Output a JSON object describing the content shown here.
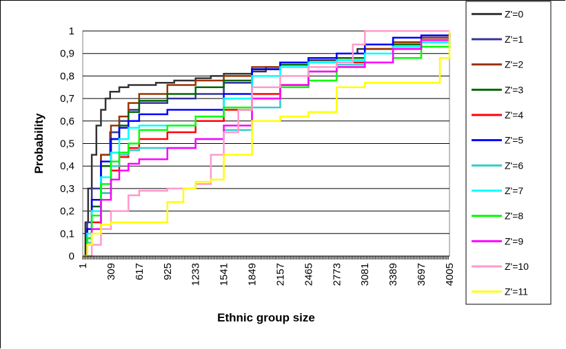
{
  "chart_data": {
    "type": "line",
    "title": "",
    "xlabel": "Ethnic group size",
    "ylabel": "Probability",
    "xlim": [
      1,
      4005
    ],
    "ylim": [
      0,
      1
    ],
    "x_ticks": [
      "1",
      "309",
      "617",
      "925",
      "1233",
      "1541",
      "1849",
      "2157",
      "2465",
      "2773",
      "3081",
      "3389",
      "3697",
      "4005"
    ],
    "y_ticks": [
      "0",
      "0,1",
      "0,2",
      "0,3",
      "0,4",
      "0,5",
      "0,6",
      "0,7",
      "0,8",
      "0,9",
      "1"
    ],
    "grid": "horizontal",
    "legend_position": "right",
    "series": [
      {
        "name": "Z'=0",
        "color": "#333333",
        "x": [
          1,
          30,
          60,
          100,
          150,
          200,
          250,
          300,
          400,
          500,
          617,
          800,
          1000,
          1233,
          1400,
          1541,
          1849,
          2000,
          2157,
          2465,
          2773,
          3000,
          3389,
          3697,
          4005
        ],
        "y": [
          0,
          0.15,
          0.3,
          0.45,
          0.58,
          0.65,
          0.7,
          0.73,
          0.75,
          0.76,
          0.76,
          0.77,
          0.78,
          0.79,
          0.8,
          0.81,
          0.82,
          0.84,
          0.86,
          0.87,
          0.9,
          0.92,
          0.95,
          0.97,
          0.98
        ]
      },
      {
        "name": "Z'=1",
        "color": "#333399",
        "x": [
          1,
          50,
          100,
          200,
          300,
          400,
          500,
          617,
          925,
          1233,
          1541,
          1849,
          2157,
          2465,
          2773,
          3081,
          3389,
          3697,
          4005
        ],
        "y": [
          0,
          0.15,
          0.3,
          0.45,
          0.55,
          0.6,
          0.65,
          0.68,
          0.7,
          0.72,
          0.77,
          0.83,
          0.85,
          0.86,
          0.88,
          0.92,
          0.97,
          0.98,
          0.99
        ]
      },
      {
        "name": "Z'=2",
        "color": "#993300",
        "x": [
          1,
          50,
          100,
          200,
          309,
          400,
          500,
          617,
          925,
          1233,
          1541,
          1849,
          2157,
          2465,
          2773,
          3081,
          3389,
          3697,
          4005
        ],
        "y": [
          0,
          0.12,
          0.25,
          0.45,
          0.58,
          0.62,
          0.68,
          0.72,
          0.76,
          0.78,
          0.8,
          0.84,
          0.86,
          0.86,
          0.9,
          0.92,
          0.95,
          0.97,
          0.98
        ]
      },
      {
        "name": "Z'=3",
        "color": "#006600",
        "x": [
          1,
          50,
          100,
          200,
          309,
          400,
          500,
          617,
          925,
          1233,
          1541,
          1849,
          2157,
          2465,
          2773,
          3081,
          3389,
          3697,
          4005
        ],
        "y": [
          0,
          0.1,
          0.22,
          0.4,
          0.52,
          0.58,
          0.64,
          0.69,
          0.72,
          0.75,
          0.78,
          0.83,
          0.85,
          0.86,
          0.88,
          0.9,
          0.94,
          0.96,
          0.97
        ]
      },
      {
        "name": "Z'=4",
        "color": "#ff0000",
        "x": [
          1,
          50,
          100,
          200,
          309,
          400,
          500,
          617,
          925,
          1233,
          1541,
          1849,
          2157,
          2465,
          2773,
          3081,
          3389,
          3697,
          4005
        ],
        "y": [
          0,
          0.08,
          0.15,
          0.28,
          0.38,
          0.44,
          0.48,
          0.52,
          0.55,
          0.6,
          0.65,
          0.72,
          0.76,
          0.82,
          0.86,
          0.9,
          0.92,
          0.96,
          0.98
        ]
      },
      {
        "name": "Z'=5",
        "color": "#0000ff",
        "x": [
          1,
          50,
          100,
          200,
          309,
          400,
          500,
          617,
          925,
          1233,
          1541,
          1849,
          2157,
          2465,
          2773,
          3081,
          3389,
          3697,
          4005
        ],
        "y": [
          0,
          0.12,
          0.25,
          0.42,
          0.52,
          0.57,
          0.6,
          0.63,
          0.65,
          0.65,
          0.72,
          0.83,
          0.86,
          0.88,
          0.9,
          0.94,
          0.97,
          0.98,
          0.99
        ]
      },
      {
        "name": "Z'=6",
        "color": "#33cccc",
        "x": [
          1,
          50,
          100,
          200,
          309,
          400,
          500,
          617,
          925,
          1233,
          1541,
          1849,
          2157,
          2465,
          2773,
          3081,
          3389,
          3697,
          4005
        ],
        "y": [
          0,
          0.06,
          0.12,
          0.28,
          0.4,
          0.45,
          0.47,
          0.48,
          0.48,
          0.52,
          0.56,
          0.66,
          0.75,
          0.82,
          0.85,
          0.9,
          0.93,
          0.95,
          0.96
        ]
      },
      {
        "name": "Z'=7",
        "color": "#00ffff",
        "x": [
          1,
          50,
          100,
          200,
          309,
          400,
          500,
          617,
          925,
          1233,
          1541,
          1849,
          2157,
          2465,
          2773,
          3081,
          3389,
          3697,
          4005
        ],
        "y": [
          0,
          0.1,
          0.2,
          0.35,
          0.46,
          0.52,
          0.57,
          0.58,
          0.58,
          0.62,
          0.7,
          0.8,
          0.84,
          0.86,
          0.87,
          0.9,
          0.93,
          0.95,
          0.96
        ]
      },
      {
        "name": "Z'=8",
        "color": "#00ff00",
        "x": [
          1,
          50,
          100,
          200,
          309,
          400,
          500,
          617,
          925,
          1233,
          1541,
          1849,
          2157,
          2465,
          2773,
          3081,
          3389,
          3697,
          4005
        ],
        "y": [
          0,
          0.08,
          0.18,
          0.32,
          0.42,
          0.46,
          0.5,
          0.56,
          0.58,
          0.62,
          0.66,
          0.7,
          0.75,
          0.78,
          0.84,
          0.86,
          0.88,
          0.93,
          0.97
        ]
      },
      {
        "name": "Z'=9",
        "color": "#ff00ff",
        "x": [
          1,
          50,
          100,
          200,
          309,
          400,
          500,
          617,
          925,
          1233,
          1541,
          1849,
          2157,
          2465,
          2773,
          3081,
          3389,
          3697,
          4005
        ],
        "y": [
          0,
          0.05,
          0.12,
          0.25,
          0.34,
          0.38,
          0.41,
          0.43,
          0.48,
          0.52,
          0.58,
          0.7,
          0.76,
          0.82,
          0.84,
          0.86,
          0.92,
          0.96,
          0.98
        ]
      },
      {
        "name": "Z'=10",
        "color": "#ff99cc",
        "x": [
          1,
          100,
          200,
          309,
          500,
          617,
          925,
          1233,
          1400,
          1541,
          1700,
          1849,
          2157,
          2465,
          2773,
          2950,
          3081,
          3389,
          3697,
          4005
        ],
        "y": [
          0,
          0.05,
          0.12,
          0.2,
          0.27,
          0.29,
          0.3,
          0.32,
          0.45,
          0.55,
          0.65,
          0.75,
          0.8,
          0.84,
          0.86,
          0.94,
          1,
          1,
          1,
          1
        ]
      },
      {
        "name": "Z'=11",
        "color": "#ffff00",
        "x": [
          1,
          50,
          100,
          200,
          309,
          400,
          617,
          800,
          925,
          1100,
          1233,
          1400,
          1541,
          1849,
          2157,
          2465,
          2773,
          3081,
          3389,
          3697,
          3900,
          4005
        ],
        "y": [
          0,
          0.05,
          0.1,
          0.14,
          0.15,
          0.15,
          0.15,
          0.15,
          0.24,
          0.3,
          0.33,
          0.34,
          0.45,
          0.6,
          0.62,
          0.64,
          0.75,
          0.77,
          0.77,
          0.77,
          0.88,
          1
        ]
      }
    ]
  }
}
